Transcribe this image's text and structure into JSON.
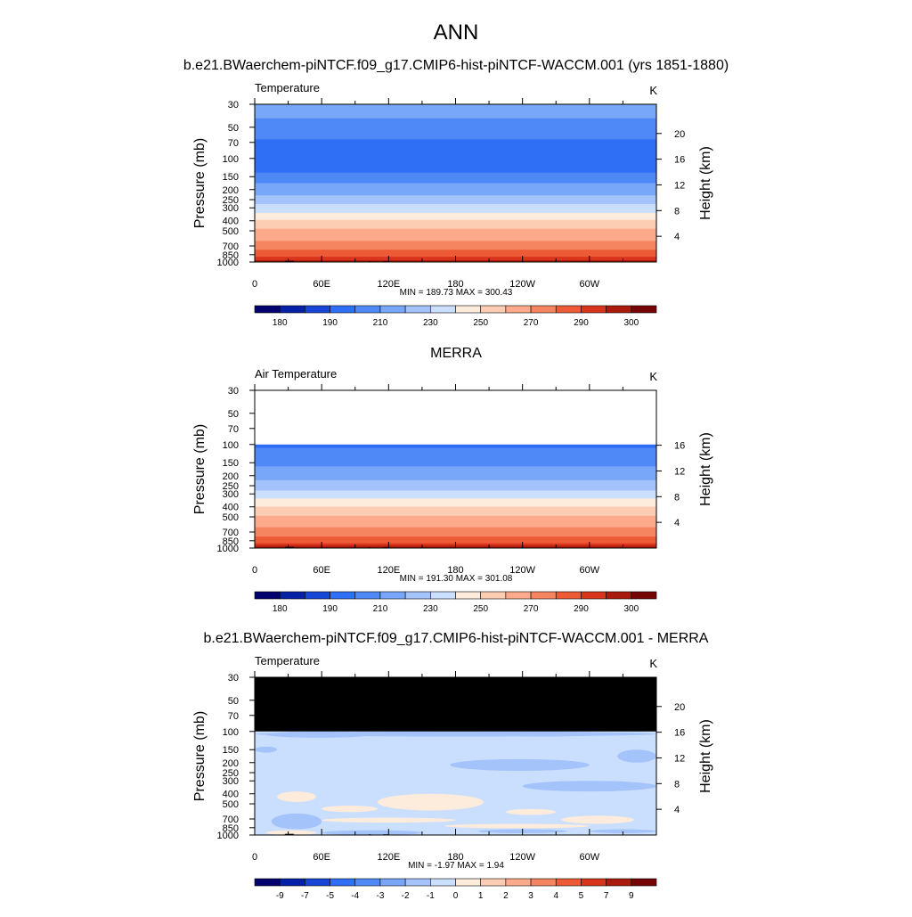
{
  "page": {
    "title": "ANN"
  },
  "chart_data": [
    {
      "type": "heatmap",
      "title": "b.e21.BWaerchem-piNTCF.f09_g17.CMIP6-hist-piNTCF-WACCM.001 (yrs 1851-1880)",
      "left_label": "Temperature",
      "units": "K",
      "ylabel": "Pressure (mb)",
      "y2label": "Height (km)",
      "x_ticks": [
        "0",
        "60E",
        "120E",
        "180",
        "120W",
        "60W"
      ],
      "y_ticks": [
        "30",
        "50",
        "70",
        "100",
        "150",
        "200",
        "250",
        "300",
        "400",
        "500",
        "700",
        "850",
        "1000"
      ],
      "height_ticks": [
        "4",
        "8",
        "12",
        "16",
        "20"
      ],
      "stats": "MIN = 189.73  MAX = 300.43",
      "min": 189.73,
      "max": 300.43,
      "colorbar_labels": [
        "180",
        "190",
        "210",
        "230",
        "250",
        "270",
        "290",
        "300"
      ],
      "pressure_profile": [
        {
          "p": 30,
          "v": 213
        },
        {
          "p": 50,
          "v": 208
        },
        {
          "p": 60,
          "v": 203
        },
        {
          "p": 70,
          "v": 198
        },
        {
          "p": 100,
          "v": 196
        },
        {
          "p": 130,
          "v": 197
        },
        {
          "p": 150,
          "v": 205
        },
        {
          "p": 200,
          "v": 215
        },
        {
          "p": 250,
          "v": 225
        },
        {
          "p": 300,
          "v": 235
        },
        {
          "p": 350,
          "v": 242
        },
        {
          "p": 400,
          "v": 252
        },
        {
          "p": 500,
          "v": 262
        },
        {
          "p": 600,
          "v": 268
        },
        {
          "p": 700,
          "v": 275
        },
        {
          "p": 850,
          "v": 285
        },
        {
          "p": 925,
          "v": 292
        },
        {
          "p": 1000,
          "v": 300
        }
      ],
      "has_topography": true
    },
    {
      "type": "heatmap",
      "title": "MERRA",
      "left_label": "Air Temperature",
      "units": "K",
      "ylabel": "Pressure (mb)",
      "y2label": "Height (km)",
      "x_ticks": [
        "0",
        "60E",
        "120E",
        "180",
        "120W",
        "60W"
      ],
      "y_ticks": [
        "30",
        "50",
        "70",
        "100",
        "150",
        "200",
        "250",
        "300",
        "400",
        "500",
        "700",
        "850",
        "1000"
      ],
      "height_ticks": [
        "4",
        "8",
        "12",
        "16"
      ],
      "stats": "MIN = 191.30  MAX = 301.08",
      "min": 191.3,
      "max": 301.08,
      "colorbar_labels": [
        "180",
        "190",
        "210",
        "230",
        "250",
        "270",
        "290",
        "300"
      ],
      "data_top_pressure": 100,
      "pressure_profile": [
        {
          "p": 100,
          "v": 199
        },
        {
          "p": 130,
          "v": 203
        },
        {
          "p": 150,
          "v": 208
        },
        {
          "p": 200,
          "v": 216
        },
        {
          "p": 250,
          "v": 225
        },
        {
          "p": 300,
          "v": 234
        },
        {
          "p": 350,
          "v": 242
        },
        {
          "p": 400,
          "v": 250
        },
        {
          "p": 500,
          "v": 261
        },
        {
          "p": 600,
          "v": 268
        },
        {
          "p": 700,
          "v": 275
        },
        {
          "p": 850,
          "v": 285
        },
        {
          "p": 925,
          "v": 292
        },
        {
          "p": 1000,
          "v": 301
        }
      ],
      "has_topography": true
    },
    {
      "type": "heatmap",
      "title": "b.e21.BWaerchem-piNTCF.f09_g17.CMIP6-hist-piNTCF-WACCM.001 - MERRA",
      "left_label": "Temperature",
      "units": "K",
      "ylabel": "Pressure (mb)",
      "y2label": "Height (km)",
      "x_ticks": [
        "0",
        "60E",
        "120E",
        "180",
        "120W",
        "60W"
      ],
      "y_ticks": [
        "30",
        "50",
        "70",
        "100",
        "150",
        "200",
        "250",
        "300",
        "400",
        "500",
        "700",
        "850",
        "1000"
      ],
      "height_ticks": [
        "4",
        "8",
        "12",
        "16",
        "20"
      ],
      "stats": "MIN =  -1.97  MAX =   1.94",
      "min": -1.97,
      "max": 1.94,
      "colorbar_labels": [
        "-9",
        "-7",
        "-5",
        "-4",
        "-3",
        "-2",
        "-1",
        "0",
        "1",
        "2",
        "3",
        "4",
        "5",
        "7",
        "9"
      ],
      "missing_above_pressure": 100,
      "missing_color": "#000000",
      "background_value": -0.5,
      "patches": [
        {
          "lon0": 0,
          "lon1": 360,
          "p0": 100,
          "p1": 112,
          "v": -1.5
        },
        {
          "lon0": 10,
          "lon1": 105,
          "p0": 100,
          "p1": 115,
          "v": -1.5
        },
        {
          "lon0": 205,
          "lon1": 315,
          "p0": 100,
          "p1": 112,
          "v": -1.5
        },
        {
          "lon0": 0,
          "lon1": 20,
          "p0": 140,
          "p1": 160,
          "v": -1.5
        },
        {
          "lon0": 175,
          "lon1": 300,
          "p0": 185,
          "p1": 240,
          "v": -1.5
        },
        {
          "lon0": 240,
          "lon1": 360,
          "p0": 300,
          "p1": 380,
          "v": -1.5
        },
        {
          "lon0": 325,
          "lon1": 360,
          "p0": 150,
          "p1": 200,
          "v": -1.5
        },
        {
          "lon0": 20,
          "lon1": 55,
          "p0": 380,
          "p1": 480,
          "v": 0.5
        },
        {
          "lon0": 110,
          "lon1": 205,
          "p0": 400,
          "p1": 580,
          "v": 0.5
        },
        {
          "lon0": 60,
          "lon1": 110,
          "p0": 520,
          "p1": 600,
          "v": 0.5
        },
        {
          "lon0": 225,
          "lon1": 270,
          "p0": 560,
          "p1": 640,
          "v": 0.5
        },
        {
          "lon0": 60,
          "lon1": 180,
          "p0": 680,
          "p1": 760,
          "v": 0.5
        },
        {
          "lon0": 275,
          "lon1": 340,
          "p0": 650,
          "p1": 780,
          "v": 0.5
        },
        {
          "lon0": 170,
          "lon1": 300,
          "p0": 780,
          "p1": 860,
          "v": 0.5
        },
        {
          "lon0": 15,
          "lon1": 60,
          "p0": 620,
          "p1": 880,
          "v": -1.5
        },
        {
          "lon0": 10,
          "lon1": 55,
          "p0": 900,
          "p1": 1000,
          "v": 0.5
        },
        {
          "lon0": 60,
          "lon1": 150,
          "p0": 900,
          "p1": 1000,
          "v": -1.5
        },
        {
          "lon0": 200,
          "lon1": 280,
          "p0": 880,
          "p1": 960,
          "v": -1.5
        },
        {
          "lon0": 300,
          "lon1": 360,
          "p0": 880,
          "p1": 960,
          "v": -1.5
        }
      ],
      "has_topography": true
    }
  ],
  "colors": {
    "abs_scale": [
      "#03026e",
      "#0521a8",
      "#1745d6",
      "#2f6ff5",
      "#4f89f7",
      "#78a6f8",
      "#a4c3fb",
      "#cadffd",
      "#fdebdc",
      "#fdcdb3",
      "#fcaa8b",
      "#f58461",
      "#ec5a36",
      "#d9351d",
      "#ab1b0d",
      "#760606"
    ],
    "diff_scale": [
      "#03026e",
      "#0521a8",
      "#1745d6",
      "#2f6ff5",
      "#4f89f7",
      "#78a6f8",
      "#a4c3fb",
      "#cadffd",
      "#fdebdc",
      "#fdcdb3",
      "#fcaa8b",
      "#f58461",
      "#ec5a36",
      "#d9351d",
      "#ab1b0d",
      "#760606"
    ]
  }
}
